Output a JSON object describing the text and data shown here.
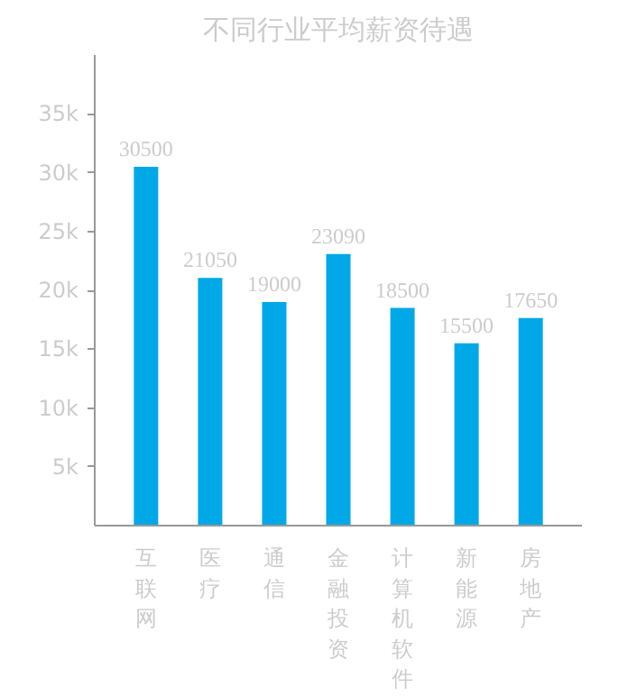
{
  "chart_data": {
    "type": "bar",
    "title": "不同行业平均薪资待遇",
    "categories": [
      "互联网",
      "医疗",
      "通信",
      "金融投资",
      "计算机软件",
      "新能源",
      "房地产"
    ],
    "values": [
      30500,
      21050,
      19000,
      23090,
      18500,
      15500,
      17650
    ],
    "color": "#00a8e8",
    "ylim": [
      0,
      40000
    ],
    "yticks": [
      {
        "value": 5000,
        "label": "5k"
      },
      {
        "value": 10000,
        "label": "10k"
      },
      {
        "value": 15000,
        "label": "15k"
      },
      {
        "value": 20000,
        "label": "20k"
      },
      {
        "value": 25000,
        "label": "25k"
      },
      {
        "value": 30000,
        "label": "30k"
      },
      {
        "value": 35000,
        "label": "35k"
      }
    ],
    "data_labels": true,
    "grid": false
  }
}
